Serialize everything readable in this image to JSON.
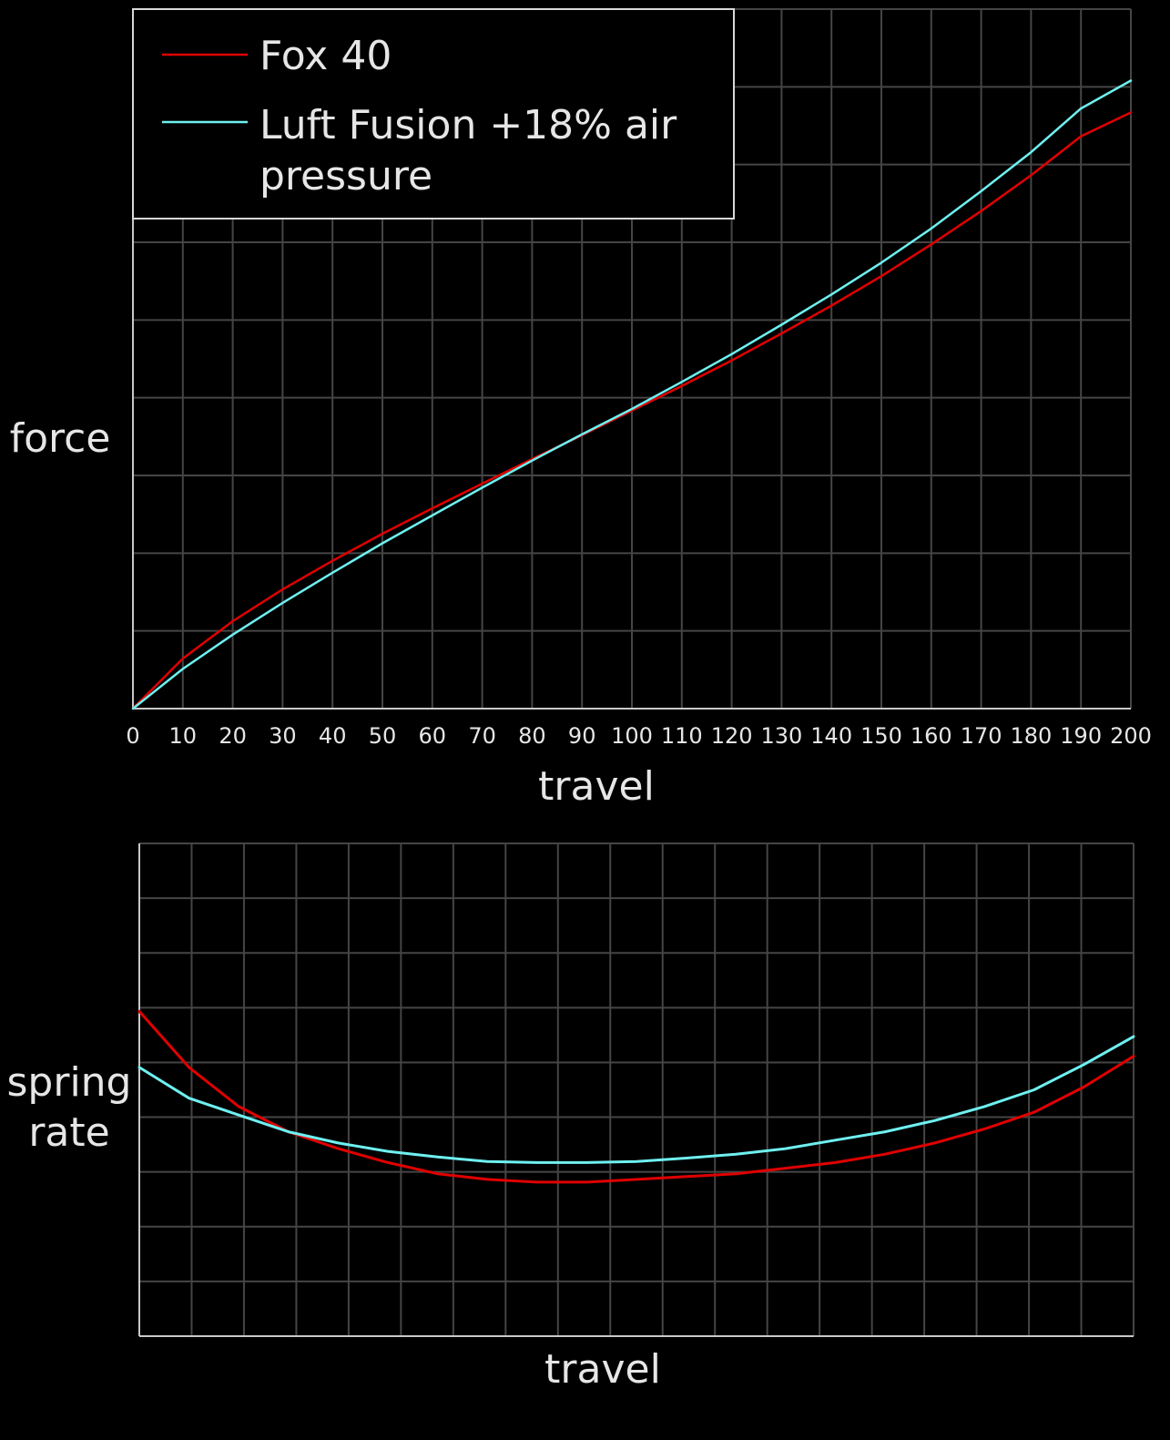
{
  "colors": {
    "background": "#000000",
    "grid": "#454545",
    "axis": "#c8c8c8",
    "text": "#e6e6e6",
    "fox": "#e00000",
    "luft": "#6ff0f0"
  },
  "chart_data": [
    {
      "type": "line",
      "xlabel": "travel",
      "ylabel": "force",
      "xlim": [
        0,
        200
      ],
      "ylim": [
        0,
        8.8
      ],
      "x_ticks": [
        0,
        10,
        20,
        30,
        40,
        50,
        60,
        70,
        80,
        90,
        100,
        110,
        120,
        130,
        140,
        150,
        160,
        170,
        180,
        190,
        200
      ],
      "y_tick_labels_shown": false,
      "grid": true,
      "legend": {
        "position": "top-left",
        "entries": [
          {
            "label_lines": [
              "Fox 40"
            ],
            "color": "#e00000"
          },
          {
            "label_lines": [
              "Luft Fusion +18% air",
              "pressure"
            ],
            "color": "#6ff0f0"
          }
        ]
      },
      "x": [
        0,
        10,
        20,
        30,
        40,
        50,
        60,
        70,
        80,
        90,
        100,
        110,
        120,
        130,
        140,
        150,
        160,
        170,
        180,
        190,
        200
      ],
      "series": [
        {
          "name": "Fox 40",
          "color": "#e00000",
          "values": [
            0,
            0.63,
            1.1,
            1.5,
            1.86,
            2.2,
            2.52,
            2.83,
            3.14,
            3.44,
            3.75,
            4.06,
            4.38,
            4.72,
            5.07,
            5.44,
            5.84,
            6.26,
            6.71,
            7.2,
            7.5
          ]
        },
        {
          "name": "Luft Fusion +18% air pressure",
          "color": "#6ff0f0",
          "values": [
            0,
            0.5,
            0.93,
            1.33,
            1.71,
            2.08,
            2.43,
            2.78,
            3.12,
            3.45,
            3.77,
            4.11,
            4.46,
            4.83,
            5.21,
            5.61,
            6.04,
            6.51,
            7.0,
            7.55,
            7.9
          ]
        }
      ]
    },
    {
      "type": "line",
      "xlabel": "travel",
      "ylabel_lines": [
        "spring",
        "rate"
      ],
      "xlim": [
        0,
        200
      ],
      "ylim": [
        0,
        8.8
      ],
      "x_tick_labels_shown": false,
      "y_tick_labels_shown": false,
      "grid": true,
      "x": [
        0,
        10,
        20,
        30,
        40,
        50,
        60,
        70,
        80,
        90,
        100,
        110,
        120,
        130,
        140,
        150,
        160,
        170,
        180,
        190,
        200
      ],
      "series": [
        {
          "name": "Fox 40",
          "color": "#e00000",
          "values": [
            5.8,
            4.8,
            4.1,
            3.65,
            3.35,
            3.1,
            2.9,
            2.8,
            2.75,
            2.75,
            2.8,
            2.85,
            2.9,
            3.0,
            3.1,
            3.25,
            3.45,
            3.7,
            4.0,
            4.45,
            5.0
          ]
        },
        {
          "name": "Luft Fusion +18% air pressure",
          "color": "#6ff0f0",
          "values": [
            4.8,
            4.25,
            3.95,
            3.65,
            3.45,
            3.3,
            3.2,
            3.12,
            3.1,
            3.1,
            3.12,
            3.18,
            3.25,
            3.35,
            3.5,
            3.65,
            3.85,
            4.1,
            4.4,
            4.85,
            5.35
          ]
        }
      ]
    }
  ]
}
